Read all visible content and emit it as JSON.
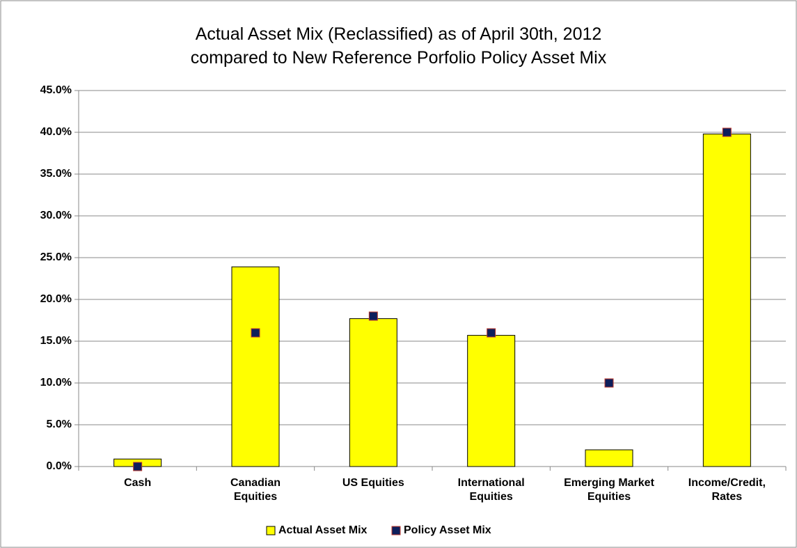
{
  "chart_data": {
    "type": "bar",
    "title": "Actual Asset Mix (Reclassified) as of April 30th, 2012\ncompared to New Reference Porfolio Policy Asset Mix",
    "categories": [
      "Cash",
      "Canadian\nEquities",
      "US Equities",
      "International\nEquities",
      "Emerging Market\nEquities",
      "Income/Credit,\nRates"
    ],
    "series": [
      {
        "name": "Actual Asset Mix",
        "type": "bar",
        "color": "#ffff00",
        "values": [
          0.9,
          23.9,
          17.7,
          15.7,
          2.0,
          39.8
        ]
      },
      {
        "name": "Policy Asset Mix",
        "type": "scatter",
        "color": "#0d1f5c",
        "values": [
          0,
          16,
          18,
          16,
          10,
          40
        ]
      }
    ],
    "ylim": [
      0,
      45
    ],
    "yticks": [
      {
        "value": 0,
        "label": "0.0%"
      },
      {
        "value": 5,
        "label": "5.0%"
      },
      {
        "value": 10,
        "label": "10.0%"
      },
      {
        "value": 15,
        "label": "15.0%"
      },
      {
        "value": 20,
        "label": "20.0%"
      },
      {
        "value": 25,
        "label": "25.0%"
      },
      {
        "value": 30,
        "label": "30.0%"
      },
      {
        "value": 35,
        "label": "35.0%"
      },
      {
        "value": 40,
        "label": "40.0%"
      },
      {
        "value": 45,
        "label": "45.0%"
      }
    ],
    "grid": true,
    "legend": "bottom"
  }
}
